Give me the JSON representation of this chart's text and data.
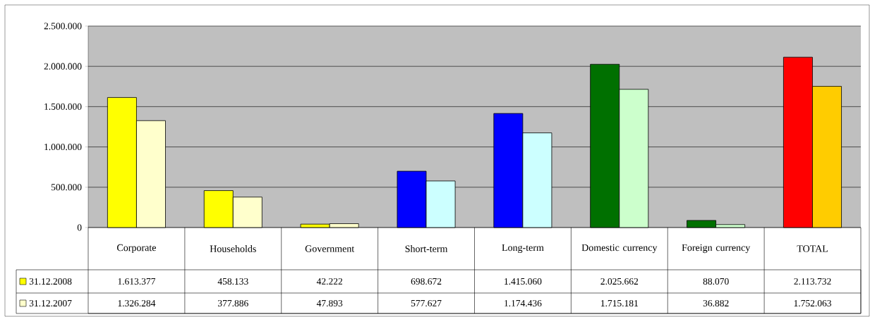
{
  "chart_data": {
    "type": "bar",
    "categories": [
      "Corporate",
      "Households",
      "Government",
      "Short-term",
      "Long-term",
      "Domestic currency",
      "Foreign currency",
      "TOTAL"
    ],
    "series": [
      {
        "name": "31.12.2008",
        "color": "#ffff00",
        "colors": [
          "#ffff00",
          "#ffff00",
          "#ffff00",
          "#0000ff",
          "#0000ff",
          "#007000",
          "#007000",
          "#ff0000"
        ],
        "values": [
          1613377,
          458133,
          42222,
          698672,
          1415060,
          2025662,
          88070,
          2113732
        ],
        "value_labels": [
          "1.613.377",
          "458.133",
          "42.222",
          "698.672",
          "1.415.060",
          "2.025.662",
          "88.070",
          "2.113.732"
        ]
      },
      {
        "name": "31.12.2007",
        "color": "#ffffcc",
        "colors": [
          "#ffffcc",
          "#ffffcc",
          "#ffffcc",
          "#ccffff",
          "#ccffff",
          "#ccffcc",
          "#ccffcc",
          "#ffcc00"
        ],
        "values": [
          1326284,
          377886,
          47893,
          577627,
          1174436,
          1715181,
          36882,
          1752063
        ],
        "value_labels": [
          "1.326.284",
          "377.886",
          "47.893",
          "577.627",
          "1.174.436",
          "1.715.181",
          "36.882",
          "1.752.063"
        ]
      }
    ],
    "ylim": [
      0,
      2500000
    ],
    "yticks": [
      0,
      {
        "value": 500000,
        "label": "500.000"
      },
      {
        "value": 1000000,
        "label": "1.000.000"
      },
      {
        "value": 1500000,
        "label": "1.500.000"
      },
      {
        "value": 2000000,
        "label": "2.000.000"
      },
      {
        "value": 2500000,
        "label": "2.500.000"
      }
    ],
    "grid": "y",
    "legend": "bottom"
  }
}
